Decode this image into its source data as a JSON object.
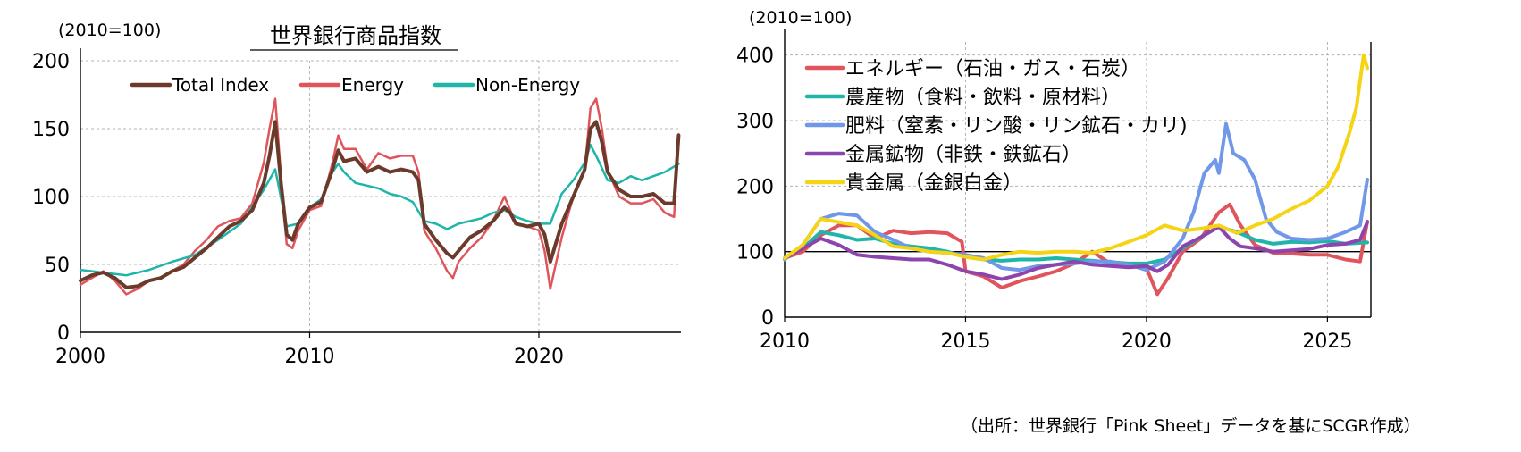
{
  "source_note": "（出所：世界銀行「Pink Sheet」データを基にSCGR作成）",
  "chart_data": [
    {
      "type": "line",
      "title": "世界銀行商品指数",
      "unit_label": "(2010=100)",
      "xlim": [
        2000,
        2026.2
      ],
      "ylim": [
        0,
        200
      ],
      "x_ticks": [
        2000,
        2010,
        2020
      ],
      "y_ticks": [
        0,
        50,
        100,
        150,
        200
      ],
      "grid": true,
      "legend_position": "top-center",
      "series": [
        {
          "name": "Total Index",
          "color": "#6b3a2a",
          "width": 4,
          "x": [
            2000,
            2000.5,
            2001,
            2001.5,
            2002,
            2002.5,
            2003,
            2003.5,
            2004,
            2004.5,
            2005,
            2005.5,
            2006,
            2006.5,
            2007,
            2007.5,
            2008,
            2008.25,
            2008.5,
            2008.75,
            2009,
            2009.25,
            2009.5,
            2010,
            2010.5,
            2011,
            2011.25,
            2011.5,
            2012,
            2012.5,
            2013,
            2013.5,
            2014,
            2014.5,
            2014.75,
            2015,
            2015.25,
            2015.5,
            2016,
            2016.25,
            2016.5,
            2017,
            2017.5,
            2018,
            2018.5,
            2018.75,
            2019,
            2019.5,
            2020,
            2020.25,
            2020.5,
            2021,
            2021.5,
            2022,
            2022.25,
            2022.5,
            2022.75,
            2023,
            2023.5,
            2024,
            2024.5,
            2025,
            2025.5,
            2025.9,
            2026.1
          ],
          "y": [
            38,
            42,
            44,
            40,
            33,
            34,
            38,
            40,
            45,
            48,
            55,
            62,
            70,
            78,
            82,
            90,
            110,
            130,
            155,
            110,
            72,
            68,
            80,
            92,
            96,
            120,
            134,
            126,
            128,
            118,
            122,
            118,
            120,
            118,
            112,
            80,
            74,
            68,
            58,
            55,
            60,
            70,
            75,
            82,
            92,
            88,
            80,
            78,
            80,
            72,
            52,
            80,
            100,
            120,
            150,
            155,
            140,
            118,
            105,
            100,
            100,
            102,
            95,
            95,
            145
          ]
        },
        {
          "name": "Energy",
          "color": "#e0555c",
          "width": 2.5,
          "x": [
            2000,
            2000.5,
            2001,
            2001.5,
            2002,
            2002.5,
            2003,
            2003.5,
            2004,
            2004.5,
            2005,
            2005.5,
            2006,
            2006.5,
            2007,
            2007.5,
            2008,
            2008.25,
            2008.5,
            2008.75,
            2009,
            2009.25,
            2009.5,
            2010,
            2010.5,
            2011,
            2011.25,
            2011.5,
            2012,
            2012.5,
            2013,
            2013.5,
            2014,
            2014.5,
            2014.75,
            2015,
            2015.25,
            2015.5,
            2016,
            2016.25,
            2016.5,
            2017,
            2017.5,
            2018,
            2018.5,
            2018.75,
            2019,
            2019.5,
            2020,
            2020.25,
            2020.5,
            2021,
            2021.5,
            2022,
            2022.25,
            2022.5,
            2022.75,
            2023,
            2023.5,
            2024,
            2024.5,
            2025,
            2025.5,
            2025.9,
            2026.1
          ],
          "y": [
            35,
            40,
            45,
            38,
            28,
            32,
            38,
            40,
            45,
            50,
            60,
            68,
            78,
            82,
            84,
            95,
            125,
            150,
            172,
            115,
            65,
            62,
            75,
            90,
            93,
            125,
            145,
            135,
            135,
            120,
            132,
            128,
            130,
            130,
            118,
            75,
            68,
            62,
            45,
            40,
            52,
            62,
            70,
            82,
            100,
            90,
            80,
            78,
            75,
            60,
            32,
            70,
            100,
            120,
            165,
            172,
            150,
            120,
            100,
            95,
            95,
            98,
            88,
            85,
            146
          ]
        },
        {
          "name": "Non-Energy",
          "color": "#1fb5a9",
          "width": 2.5,
          "x": [
            2000,
            2001,
            2002,
            2003,
            2004,
            2005,
            2006,
            2007,
            2008,
            2008.5,
            2009,
            2009.5,
            2010,
            2010.5,
            2011,
            2011.25,
            2011.5,
            2012,
            2012.5,
            2013,
            2013.5,
            2014,
            2014.5,
            2015,
            2015.5,
            2016,
            2016.5,
            2017,
            2017.5,
            2018,
            2018.5,
            2019,
            2019.5,
            2020,
            2020.5,
            2021,
            2021.5,
            2022,
            2022.25,
            2022.5,
            2023,
            2023.5,
            2024,
            2024.5,
            2025,
            2025.5,
            2026.1
          ],
          "y": [
            46,
            44,
            42,
            46,
            52,
            57,
            68,
            80,
            105,
            120,
            78,
            80,
            92,
            98,
            118,
            124,
            118,
            110,
            108,
            106,
            102,
            100,
            96,
            82,
            80,
            76,
            80,
            82,
            84,
            88,
            90,
            85,
            82,
            80,
            80,
            102,
            112,
            125,
            138,
            130,
            112,
            110,
            115,
            112,
            115,
            118,
            124
          ]
        }
      ]
    },
    {
      "type": "line",
      "title": "",
      "unit_label": "(2010=100)",
      "xlim": [
        2010,
        2026.2
      ],
      "ylim": [
        0,
        420
      ],
      "x_ticks": [
        2010,
        2015,
        2020,
        2025
      ],
      "y_ticks": [
        0,
        100,
        200,
        300,
        400
      ],
      "reference_line": 100,
      "grid": true,
      "legend_position": "top-left",
      "series": [
        {
          "name": "エネルギー（石油・ガス・石炭）",
          "color": "#e0555c",
          "width": 4,
          "x": [
            2010,
            2010.5,
            2011,
            2011.5,
            2012,
            2012.5,
            2013,
            2013.5,
            2014,
            2014.5,
            2014.9,
            2015,
            2015.5,
            2016,
            2016.5,
            2017,
            2017.5,
            2018,
            2018.5,
            2019,
            2019.5,
            2020,
            2020.3,
            2020.6,
            2021,
            2021.5,
            2022,
            2022.3,
            2022.6,
            2023,
            2023.5,
            2024,
            2024.5,
            2025,
            2025.5,
            2025.9,
            2026.1
          ],
          "y": [
            90,
            100,
            125,
            140,
            140,
            120,
            132,
            128,
            130,
            128,
            115,
            70,
            62,
            45,
            55,
            62,
            70,
            82,
            100,
            82,
            80,
            75,
            35,
            60,
            100,
            120,
            160,
            172,
            140,
            110,
            98,
            97,
            95,
            95,
            88,
            85,
            146
          ]
        },
        {
          "name": "農産物（食料・飲料・原材料）",
          "color": "#1fb5a9",
          "width": 4,
          "x": [
            2010,
            2010.5,
            2011,
            2011.5,
            2012,
            2012.5,
            2013,
            2013.5,
            2014,
            2014.5,
            2015,
            2015.5,
            2016,
            2016.5,
            2017,
            2017.5,
            2018,
            2018.5,
            2019,
            2019.5,
            2020,
            2020.5,
            2021,
            2021.5,
            2022,
            2022.5,
            2023,
            2023.5,
            2024,
            2024.5,
            2025,
            2025.5,
            2026.1
          ],
          "y": [
            90,
            105,
            130,
            125,
            118,
            120,
            112,
            108,
            105,
            100,
            92,
            88,
            86,
            88,
            88,
            90,
            88,
            86,
            84,
            82,
            82,
            88,
            105,
            122,
            138,
            130,
            118,
            112,
            115,
            114,
            116,
            112,
            114
          ]
        },
        {
          "name": "肥料（窒素・リン酸・リン鉱石・カリ)",
          "color": "#7097e8",
          "width": 4,
          "x": [
            2010,
            2010.5,
            2011,
            2011.5,
            2012,
            2012.5,
            2013,
            2013.5,
            2014,
            2014.5,
            2015,
            2015.5,
            2016,
            2016.5,
            2017,
            2017.5,
            2018,
            2018.5,
            2019,
            2019.5,
            2020,
            2020.5,
            2021,
            2021.3,
            2021.6,
            2021.9,
            2022,
            2022.2,
            2022.4,
            2022.7,
            2023,
            2023.3,
            2023.6,
            2024,
            2024.5,
            2025,
            2025.5,
            2025.9,
            2026.1
          ],
          "y": [
            88,
            110,
            150,
            158,
            155,
            130,
            118,
            105,
            100,
            98,
            95,
            90,
            75,
            72,
            78,
            80,
            82,
            85,
            85,
            80,
            72,
            85,
            120,
            160,
            220,
            240,
            220,
            295,
            250,
            240,
            210,
            150,
            130,
            120,
            118,
            120,
            130,
            140,
            210
          ]
        },
        {
          "name": "金属鉱物（非鉄・鉄鉱石）",
          "color": "#8e44ad",
          "width": 4,
          "x": [
            2010,
            2010.5,
            2011,
            2011.5,
            2012,
            2012.5,
            2013,
            2013.5,
            2014,
            2014.5,
            2015,
            2015.5,
            2016,
            2016.5,
            2017,
            2017.5,
            2018,
            2018.5,
            2019,
            2019.5,
            2020,
            2020.3,
            2020.6,
            2021,
            2021.5,
            2022,
            2022.3,
            2022.6,
            2023,
            2023.5,
            2024,
            2024.5,
            2025,
            2025.5,
            2025.9,
            2026.1
          ],
          "y": [
            90,
            105,
            120,
            110,
            95,
            92,
            90,
            88,
            88,
            80,
            70,
            65,
            58,
            65,
            75,
            80,
            85,
            80,
            78,
            76,
            78,
            70,
            80,
            108,
            122,
            138,
            120,
            108,
            105,
            100,
            102,
            104,
            110,
            112,
            118,
            145
          ]
        },
        {
          "name": "貴金属（金銀白金）",
          "color": "#f5d416",
          "width": 4,
          "x": [
            2010,
            2010.5,
            2011,
            2011.5,
            2012,
            2012.5,
            2013,
            2013.5,
            2014,
            2014.5,
            2015,
            2015.5,
            2016,
            2016.5,
            2017,
            2017.5,
            2018,
            2018.5,
            2019,
            2019.5,
            2020,
            2020.5,
            2021,
            2021.5,
            2022,
            2022.5,
            2023,
            2023.5,
            2024,
            2024.5,
            2025,
            2025.3,
            2025.6,
            2025.8,
            2026,
            2026.1
          ],
          "y": [
            90,
            110,
            150,
            145,
            140,
            125,
            108,
            105,
            100,
            98,
            92,
            88,
            95,
            100,
            98,
            100,
            100,
            98,
            105,
            115,
            125,
            140,
            132,
            135,
            140,
            128,
            140,
            150,
            165,
            178,
            200,
            230,
            280,
            320,
            400,
            380
          ]
        }
      ]
    }
  ]
}
